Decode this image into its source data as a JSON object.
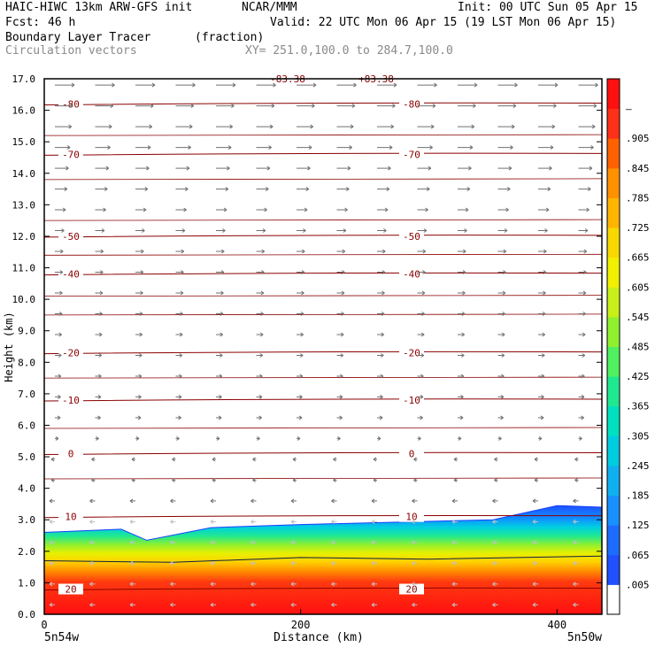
{
  "header": {
    "model": "HAIC-HIWC 13km ARW-GFS init",
    "org": "NCAR/MMM",
    "init": "Init: 00 UTC Sun 05 Apr 15",
    "fcst_label": "Fcst:",
    "fcst_value": "46 h",
    "valid": "Valid: 22 UTC Mon 06 Apr 15 (19 LST Mon 06 Apr 15)",
    "field": "Boundary Layer Tracer",
    "units": "(fraction)",
    "overlay": "Circulation vectors",
    "xy": "XY= 251.0,100.0 to 284.7,100.0"
  },
  "chart_data": {
    "type": "heatmap",
    "xlabel": "Distance (km)",
    "ylabel": "Height (km)",
    "xlim": [
      0,
      435
    ],
    "ylim": [
      0,
      17
    ],
    "x_ticks": [
      "0",
      "200",
      "400"
    ],
    "x_tick_values": [
      0,
      200,
      400
    ],
    "x_end_labels": [
      "5n54w",
      "5n50w"
    ],
    "y_ticks": [
      "0.0",
      "1.0",
      "2.0",
      "3.0",
      "4.0",
      "5.0",
      "6.0",
      "7.0",
      "8.0",
      "9.0",
      "10.0",
      "11.0",
      "12.0",
      "13.0",
      "14.0",
      "15.0",
      "16.0",
      "17.0"
    ],
    "colorbar": {
      "labels": [
        ".005",
        ".065",
        ".125",
        ".185",
        ".245",
        ".305",
        ".365",
        ".425",
        ".485",
        ".545",
        ".605",
        ".665",
        ".725",
        ".785",
        ".845",
        ".905",
        "–"
      ],
      "colors": [
        "#ffffff",
        "#2050ff",
        "#1e6cff",
        "#1890ff",
        "#10b0f0",
        "#00cce0",
        "#00e0c0",
        "#20e890",
        "#50f060",
        "#90f030",
        "#c8f018",
        "#f0f000",
        "#f8d800",
        "#ffb400",
        "#ff9000",
        "#ff6000",
        "#ff3018",
        "#ff1010"
      ]
    },
    "temperature_contours": [
      {
        "label": "-80",
        "height": 16.2
      },
      {
        "label": "-70",
        "height": 14.6
      },
      {
        "label": "-50",
        "height": 12.0
      },
      {
        "label": "-40",
        "height": 10.8
      },
      {
        "label": "-20",
        "height": 8.3
      },
      {
        "label": "-10",
        "height": 6.8
      },
      {
        "label": "0",
        "height": 5.1
      },
      {
        "label": "10",
        "height": 3.1
      },
      {
        "label": "20",
        "height": 0.8
      }
    ],
    "top_labels": [
      "-83.38",
      "+83.38"
    ],
    "tracer_top_km": [
      [
        0,
        2.6
      ],
      [
        60,
        2.7
      ],
      [
        80,
        2.35
      ],
      [
        130,
        2.75
      ],
      [
        200,
        2.85
      ],
      [
        300,
        2.95
      ],
      [
        350,
        3.0
      ],
      [
        400,
        3.45
      ],
      [
        435,
        3.4
      ]
    ]
  }
}
